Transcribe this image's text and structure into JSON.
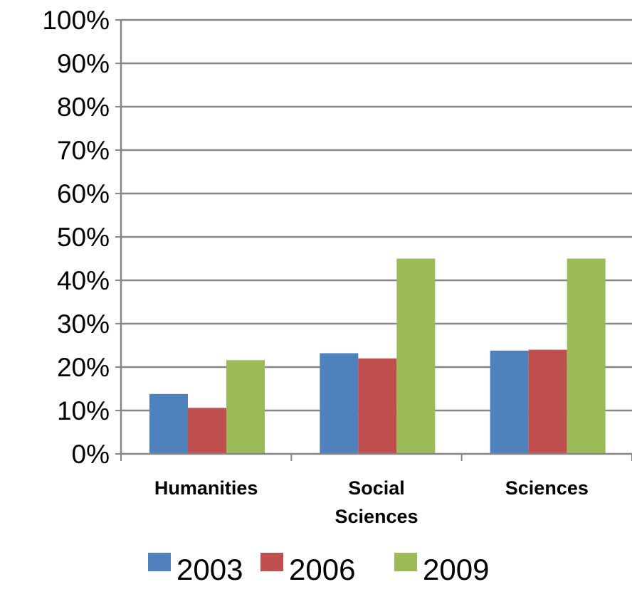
{
  "chart_data": {
    "type": "bar",
    "title": "",
    "xlabel": "",
    "ylabel": "",
    "categories": [
      [
        "Humanities"
      ],
      [
        "Social",
        "Sciences"
      ],
      [
        "Sciences"
      ]
    ],
    "series": [
      {
        "name": "2003",
        "color": "#4F81BD",
        "values": [
          13.8,
          23.2,
          23.8
        ]
      },
      {
        "name": "2006",
        "color": "#C0504D",
        "values": [
          10.6,
          22.0,
          24.0
        ]
      },
      {
        "name": "2009",
        "color": "#9BBB59",
        "values": [
          21.6,
          45.0,
          45.0
        ]
      }
    ],
    "ylim": [
      0,
      100
    ],
    "yticks": [
      0,
      10,
      20,
      30,
      40,
      50,
      60,
      70,
      80,
      90,
      100
    ],
    "ytick_labels": [
      "0%",
      "10%",
      "20%",
      "30%",
      "40%",
      "50%",
      "60%",
      "70%",
      "80%",
      "90%",
      "100%"
    ],
    "grid": true,
    "legend_position": "bottom"
  }
}
